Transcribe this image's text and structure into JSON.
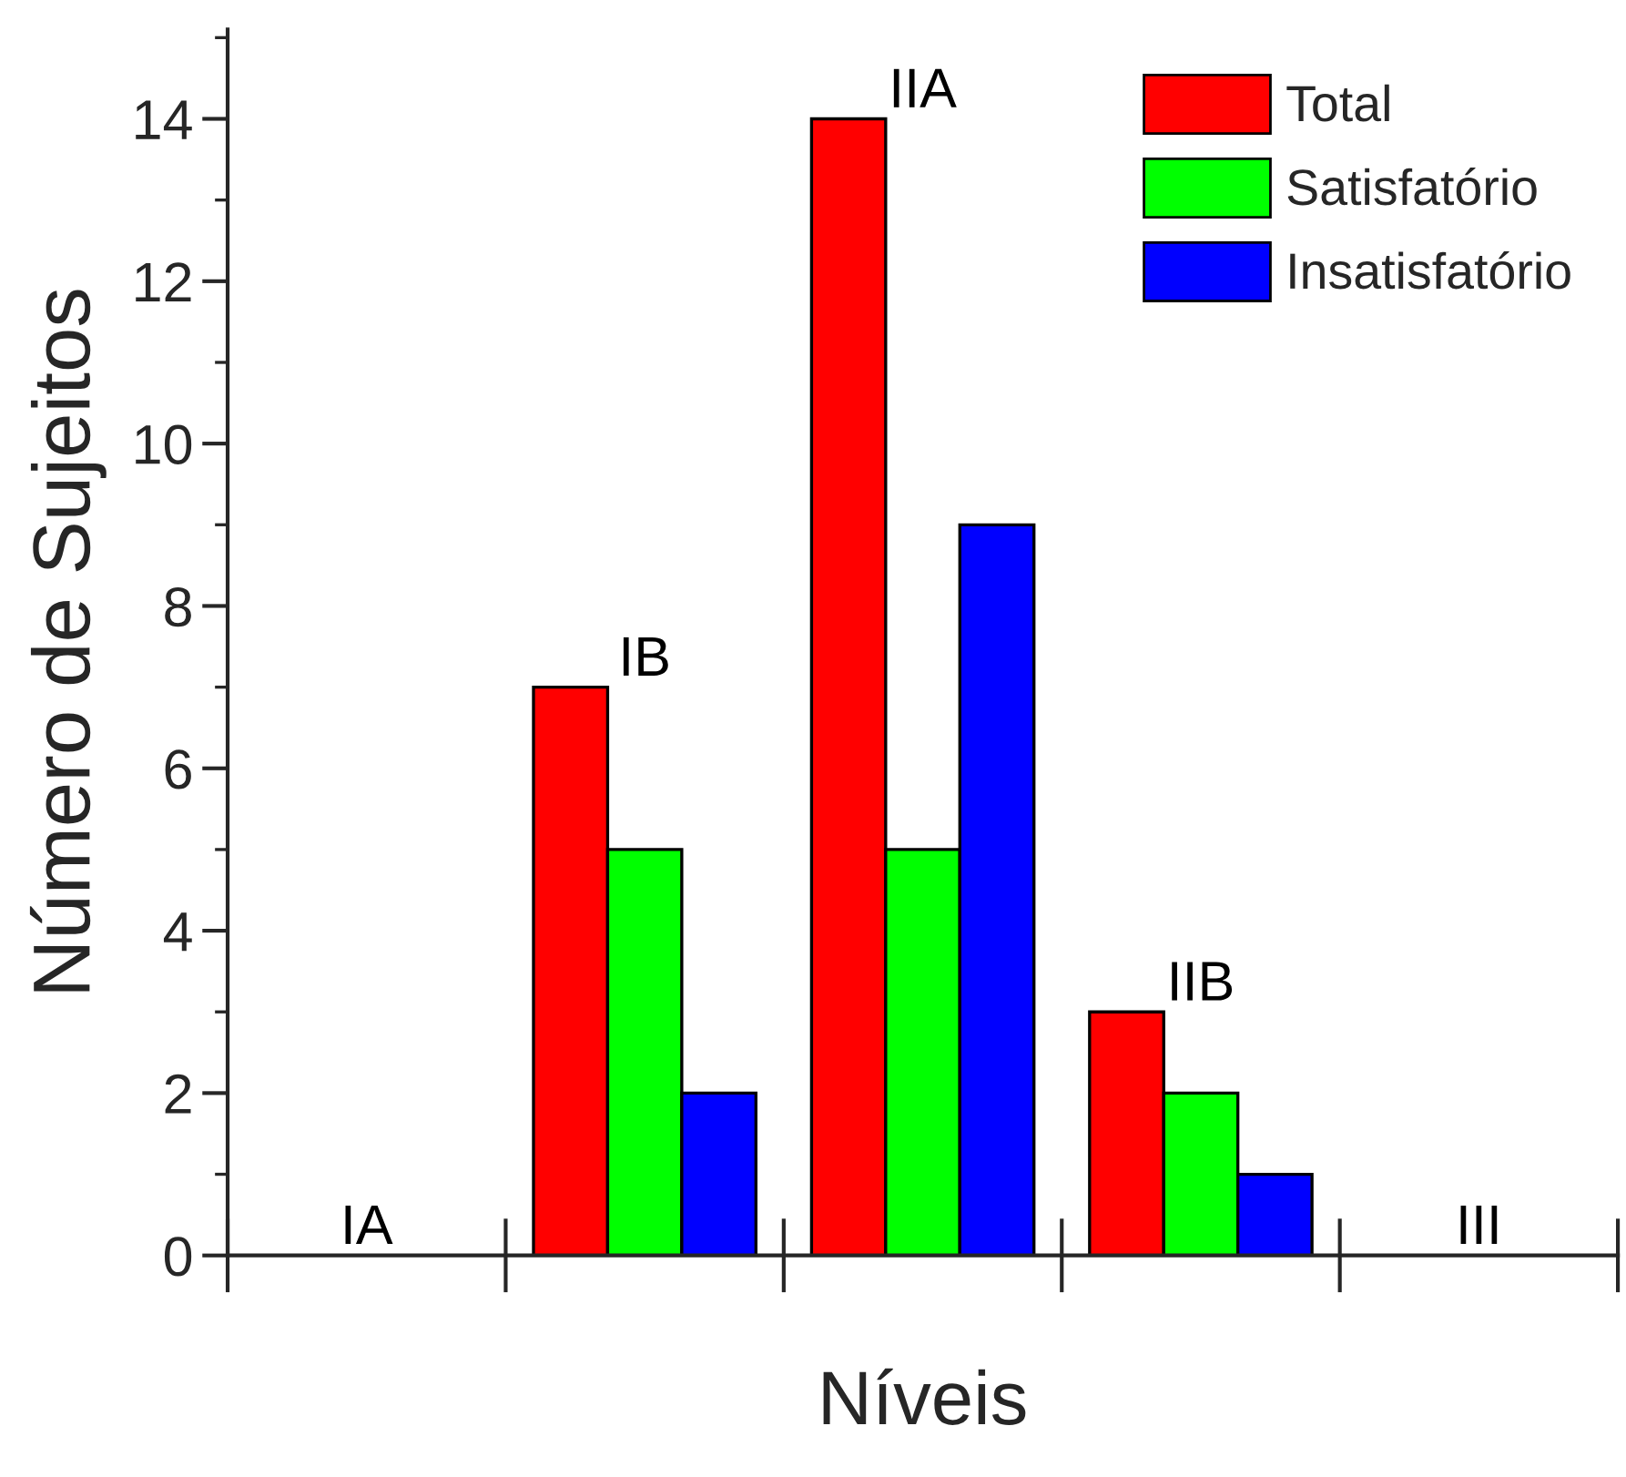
{
  "chart_data": {
    "type": "bar",
    "xlabel": "Níveis",
    "ylabel": "Número de Sujeitos",
    "categories": [
      "IA",
      "IB",
      "IIA",
      "IIB",
      "III"
    ],
    "series": [
      {
        "name": "Total",
        "color": "#ff0000",
        "values": [
          0,
          7,
          14,
          3,
          0
        ]
      },
      {
        "name": "Satisfatório",
        "color": "#00ff00",
        "values": [
          0,
          5,
          5,
          2,
          0
        ]
      },
      {
        "name": "Insatisfatório",
        "color": "#0000ff",
        "values": [
          0,
          2,
          9,
          1,
          0
        ]
      }
    ],
    "ylim": [
      0,
      15.1
    ],
    "yticks": [
      0,
      2,
      4,
      6,
      8,
      10,
      12,
      14
    ],
    "grid": false,
    "legend": "top right",
    "tick_labels": "y"
  }
}
